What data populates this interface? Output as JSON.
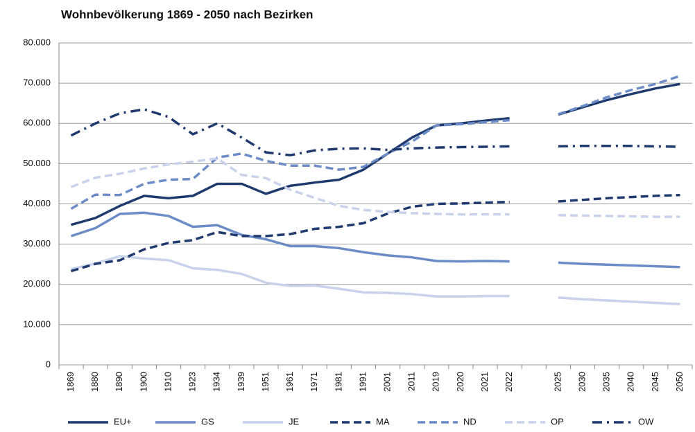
{
  "chart_data": {
    "type": "line",
    "title": "Wohnbevölkerung 1869 - 2050 nach Bezirken",
    "categories": [
      "1869",
      "1880",
      "1890",
      "1900",
      "1910",
      "1923",
      "1934",
      "1939",
      "1951",
      "1961",
      "1971",
      "1981",
      "1991",
      "2001",
      "2011",
      "2019",
      "2020",
      "2021",
      "2022",
      null,
      "2025",
      "2030",
      "2035",
      "2040",
      "2045",
      "2050"
    ],
    "ylim": [
      0,
      80000
    ],
    "yticks": [
      0,
      {
        "value": 10000,
        "label": "10.000"
      },
      {
        "value": 20000,
        "label": "20.000"
      },
      {
        "value": 30000,
        "label": "30.000"
      },
      {
        "value": 40000,
        "label": "40.000"
      },
      {
        "value": 50000,
        "label": "50.000"
      },
      {
        "value": 60000,
        "label": "60.000"
      },
      {
        "value": 70000,
        "label": "70.000"
      },
      {
        "value": 80000,
        "label": "80.000"
      }
    ],
    "grid": true,
    "legend": "bottom",
    "series": [
      {
        "name": "EU+",
        "color": "#1f3a6e",
        "style": "solid",
        "values": [
          34800,
          36500,
          39500,
          42000,
          41400,
          42000,
          45000,
          45000,
          42500,
          44500,
          45300,
          46000,
          48500,
          52500,
          56500,
          59500,
          60000,
          60700,
          61300,
          null,
          62200,
          64000,
          65800,
          67300,
          68700,
          69800
        ]
      },
      {
        "name": "GS",
        "color": "#6b8cc7",
        "style": "solid",
        "values": [
          32000,
          34000,
          37500,
          37800,
          37000,
          34300,
          34700,
          32300,
          31200,
          29500,
          29500,
          29000,
          28000,
          27200,
          26700,
          25800,
          25700,
          25800,
          25700,
          null,
          25400,
          25100,
          24900,
          24700,
          24500,
          24300
        ]
      },
      {
        "name": "JE",
        "color": "#c8d2ea",
        "style": "solid",
        "values": [
          23800,
          25200,
          27000,
          26400,
          26000,
          24000,
          23600,
          22600,
          20400,
          19600,
          19700,
          18900,
          18000,
          17900,
          17600,
          17000,
          17000,
          17100,
          17100,
          null,
          16700,
          16300,
          16000,
          15700,
          15400,
          15100
        ]
      },
      {
        "name": "MA",
        "color": "#1f3a6e",
        "style": "dash",
        "values": [
          23300,
          25100,
          26000,
          28700,
          30300,
          31000,
          33000,
          32000,
          32000,
          32500,
          33800,
          34300,
          35200,
          37600,
          39300,
          40000,
          40100,
          40300,
          40500,
          null,
          40600,
          41000,
          41400,
          41700,
          42000,
          42200
        ]
      },
      {
        "name": "ND",
        "color": "#6b8cc7",
        "style": "dash",
        "values": [
          38800,
          42300,
          42200,
          45000,
          46000,
          46200,
          51500,
          52500,
          50700,
          49500,
          49500,
          48500,
          49200,
          52500,
          55500,
          59500,
          59800,
          60300,
          60800,
          null,
          62300,
          64300,
          66500,
          68300,
          69800,
          71800
        ]
      },
      {
        "name": "OP",
        "color": "#c8d2ea",
        "style": "dash",
        "values": [
          44200,
          46500,
          47500,
          48800,
          49800,
          50500,
          51300,
          47200,
          46400,
          43500,
          41500,
          39500,
          38500,
          38000,
          37700,
          37500,
          37400,
          37400,
          37400,
          null,
          37200,
          37100,
          37000,
          36900,
          36800,
          36800
        ]
      },
      {
        "name": "OW",
        "color": "#1f3a6e",
        "style": "dashdot",
        "values": [
          57000,
          60000,
          62500,
          63500,
          61600,
          57300,
          60000,
          56500,
          52800,
          52100,
          53300,
          53700,
          53800,
          53400,
          53800,
          54000,
          54100,
          54200,
          54300,
          null,
          54300,
          54400,
          54400,
          54400,
          54300,
          54200
        ]
      }
    ]
  }
}
